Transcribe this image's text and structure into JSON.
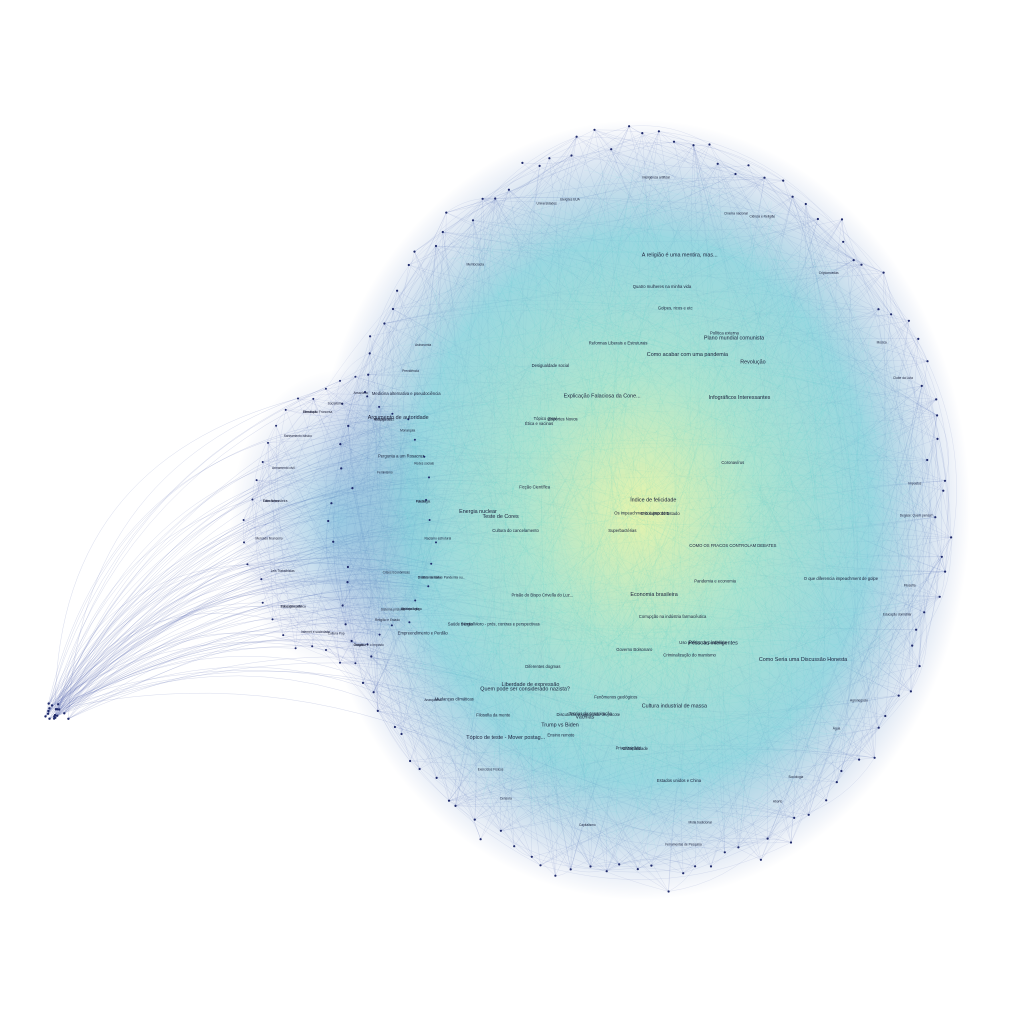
{
  "colors": {
    "background": "#ffffff",
    "edge_outer": "#4a5aa8",
    "edge_inner": "#2ec4c8",
    "core_glow": "#d8f0a0",
    "node": "#1f2a6b",
    "label": "#1a1f3a"
  },
  "labels_center": [
    "Explicação Falaciosa da Cone...",
    "Discutindo o significado de pacote",
    "COMO OS FRACOS CONTROLAM DEBATES",
    "Argumento de autoridade",
    "Sérgio Moro - prós, contras e perspectivas",
    "Pergunta a um Rosacruz",
    "Infográficos Interessantes",
    "Medicina alternativa e pseudociência",
    "O que diferencia impeachment de golpe",
    "Como Seria uma Discussão Honesta",
    "Criminalidade",
    "Prisão do Bispo Crivella do Luz...",
    "Quem pode ser considerado nazista?",
    "Cultura do cancelamento",
    "Corrupção na indústria farmacêutica",
    "Liberdade de expressão",
    "Tópico geral",
    "Privatizações",
    "Teste de Cores",
    "Criminalização do marxismo",
    "Fenômenos geológicos",
    "Índice de felicidade",
    "Esportes Novos",
    "Diferentes dogmas",
    "Trump vs Biden",
    "Pandemia e economia",
    "Golpes, ricos e etc",
    "Revolução",
    "Governo Bolsonaro",
    "Teorias da conspiração",
    "Como acabar com uma pandemia",
    "Reformas Liberais e Estruturais",
    "Superbactérias",
    "Cultura industrial de massa",
    "Empreendimento e Perdão",
    "Uso político da pandemia",
    "Tópico de teste - Mover postag...",
    "Os impeachments e impostos",
    "Quatro mulheres na minha vida",
    "A religião é uma mentira, mas...",
    "Ficção Científica",
    "Estados unidos e China",
    "Energia nuclear",
    "Ética e vacinas",
    "Ensino remoto",
    "Plano mundial comunista",
    "Mudanças climáticas",
    "Coronavírus",
    "Vacinas",
    "O colapso do Estado",
    "Saúde mental",
    "Pessoas inteligentes",
    "Filosofia da mente",
    "Política externa",
    "Economia brasileira",
    "Desigualdade social"
  ],
  "labels_outer": [
    "Degase: Quem pensa?",
    "O diário da Itália - Pandemia ou...",
    "Água",
    "Gasolina e o Imposto",
    "Ferramentas de Pesquisa",
    "Pena de morte",
    "Exercícios Físicos",
    "Fake News",
    "Crises Econômicas",
    "Revolução Francesa",
    "Astronomia",
    "Eleições 2022",
    "Eleições EUA",
    "Futebol",
    "Ciência e Religião",
    "História Antiga",
    "Clube da Luta",
    "Cultura Pop",
    "Educação domiciliar",
    "Leis Trabalhistas",
    "Aborto",
    "Armamento civil",
    "Capitalismo",
    "Socialismo",
    "Anarquismo",
    "Monarquia",
    "Feminismo",
    "Racismo estrutural",
    "Meritocracia",
    "Religião e Estado",
    "Inteligência artificial",
    "Internet e sociedade",
    "Criptomoedas",
    "Mercado financeiro",
    "Impostos",
    "Saneamento básico",
    "Agronegócio",
    "Amazônia",
    "Mídia tradicional",
    "Redes sociais",
    "Censura",
    "Direitos humanos",
    "Sistema prisional",
    "Drogas",
    "Previdência",
    "Educação pública",
    "Universidades",
    "Ciência brasileira",
    "Cinema nacional",
    "Literatura",
    "Música",
    "Videogames",
    "Filosofia",
    "Psicologia",
    "Sociologia",
    "Antropologia"
  ],
  "nodes": {
    "left_cluster": "left-cluster",
    "main_cluster": "main-cluster"
  }
}
